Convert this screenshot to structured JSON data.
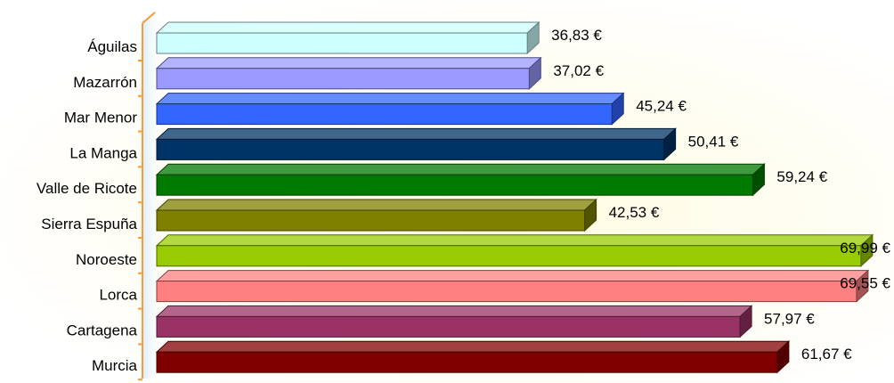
{
  "chart_data": {
    "type": "bar",
    "orientation": "horizontal",
    "style": "3d",
    "title": "",
    "xlabel": "",
    "ylabel": "",
    "grid": false,
    "legend": "none",
    "xlim": [
      0,
      70
    ],
    "categories": [
      "Águilas",
      "Mazarrón",
      "Mar Menor",
      "La Manga",
      "Valle de Ricote",
      "Sierra Espuña",
      "Noroeste",
      "Lorca",
      "Cartagena",
      "Murcia"
    ],
    "values": [
      36.83,
      37.02,
      45.24,
      50.41,
      59.24,
      42.53,
      69.99,
      69.55,
      57.97,
      61.67
    ],
    "value_labels": [
      "36,83 €",
      "37,02 €",
      "45,24 €",
      "50,41 €",
      "59,24 €",
      "42,53 €",
      "69,99 €",
      "69,55 €",
      "57,97 €",
      "61,67 €"
    ],
    "colors": [
      "#ccffff",
      "#9999ff",
      "#3366ff",
      "#003366",
      "#007a00",
      "#808000",
      "#99cc00",
      "#ff8080",
      "#993366",
      "#800000"
    ],
    "axis_color": "#ff9933",
    "background_glow": "#fffbe0"
  }
}
